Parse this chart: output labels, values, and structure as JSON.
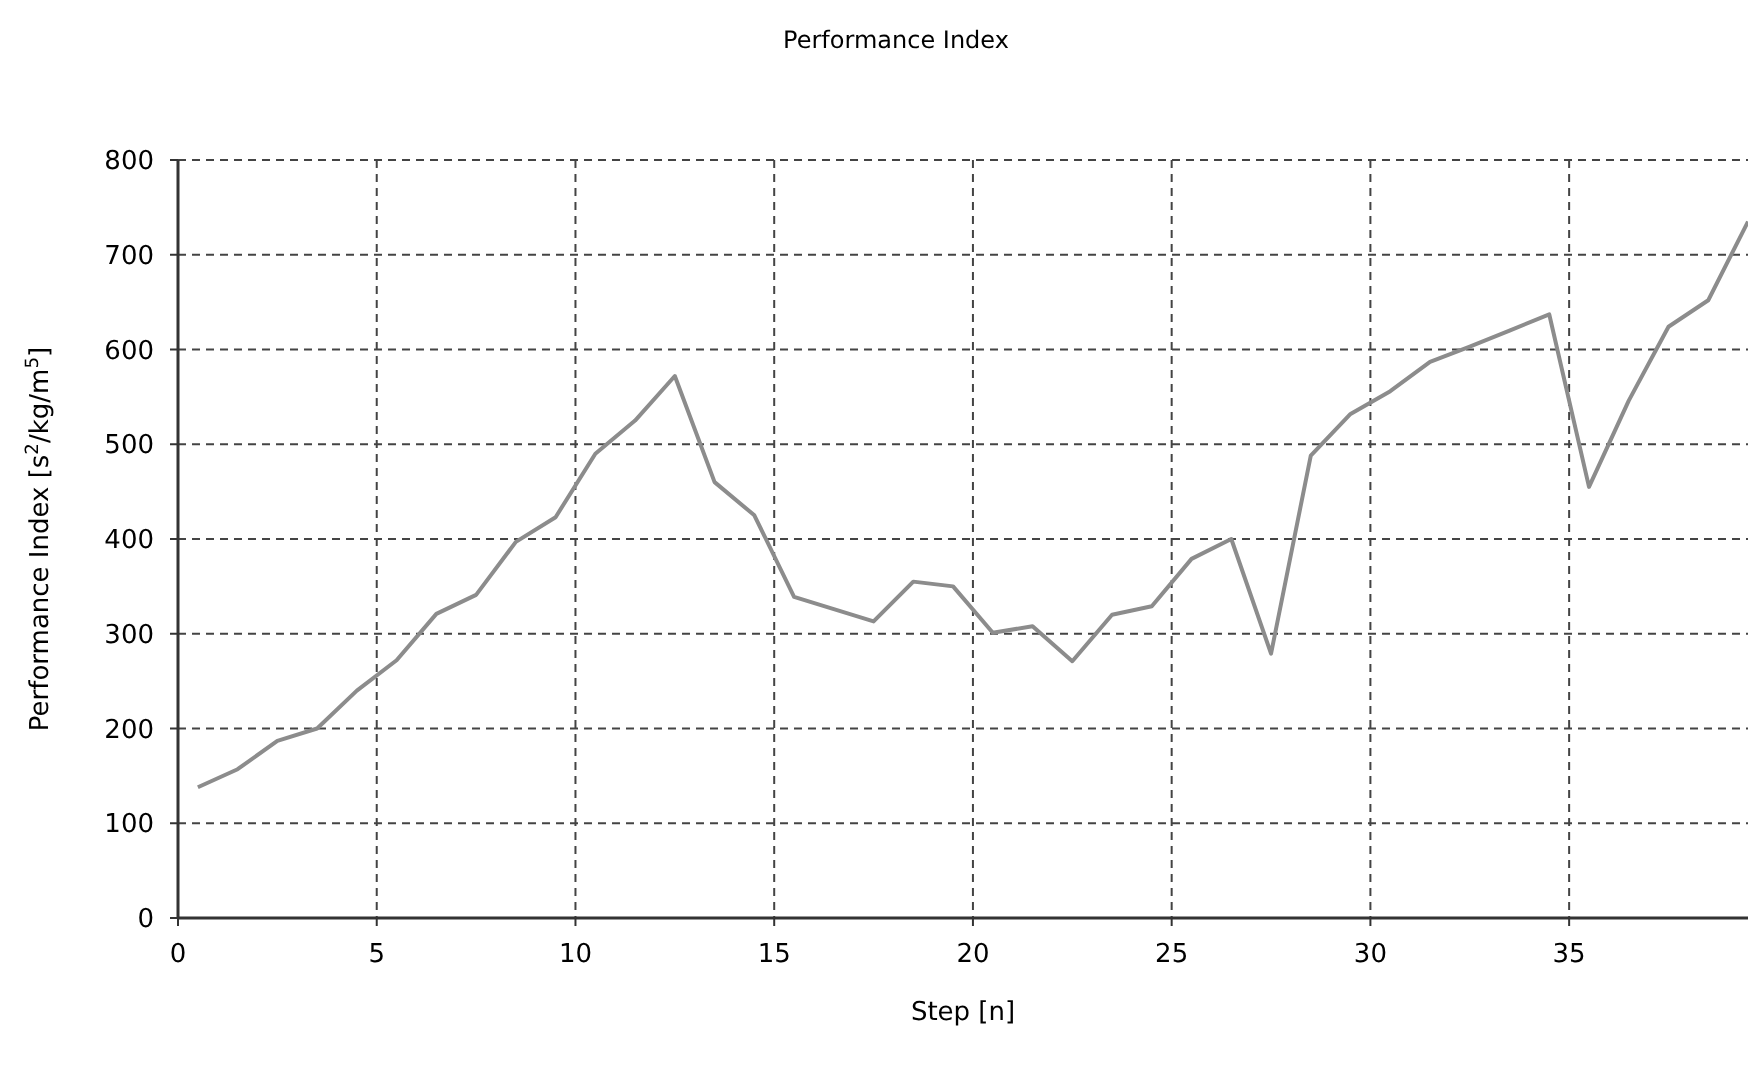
{
  "chart_data": {
    "type": "line",
    "title": "Performance Index",
    "xlabel": "Step [n]",
    "ylabel": "Performance Index  [s$^{2}$/kg/m$^{5}$]",
    "x": [
      0.5,
      1.5,
      2.5,
      3.5,
      4.5,
      5.5,
      6.5,
      7.5,
      8.5,
      9.5,
      10.5,
      11.5,
      12.5,
      13.5,
      14.5,
      15.5,
      16.5,
      17.5,
      18.5,
      19.5,
      20.5,
      21.5,
      22.5,
      23.5,
      24.5,
      25.5,
      26.5,
      27.5,
      28.5,
      29.5,
      30.5,
      31.5,
      32.5,
      33.5,
      34.5,
      35.5,
      36.5,
      37.5,
      38.5,
      39.5
    ],
    "series": [
      {
        "color": "#8c8c8c",
        "values": [
          138,
          157,
          187,
          200,
          240,
          272,
          321,
          341,
          397,
          423,
          490,
          525,
          572,
          460,
          425,
          339,
          326,
          313,
          355,
          350,
          301,
          308,
          271,
          320,
          329,
          379,
          400,
          279,
          488,
          532,
          556,
          587,
          603,
          620,
          637,
          455,
          546,
          624,
          652,
          735
        ]
      }
    ],
    "xlim": [
      0,
      39.5
    ],
    "xticks": [
      0,
      5,
      10,
      15,
      20,
      25,
      30,
      35
    ],
    "ylim": [
      0,
      800
    ],
    "yticks": [
      0,
      100,
      200,
      300,
      400,
      500,
      600,
      700,
      800
    ],
    "grid": true,
    "line_style": "solid",
    "marker": "none"
  }
}
